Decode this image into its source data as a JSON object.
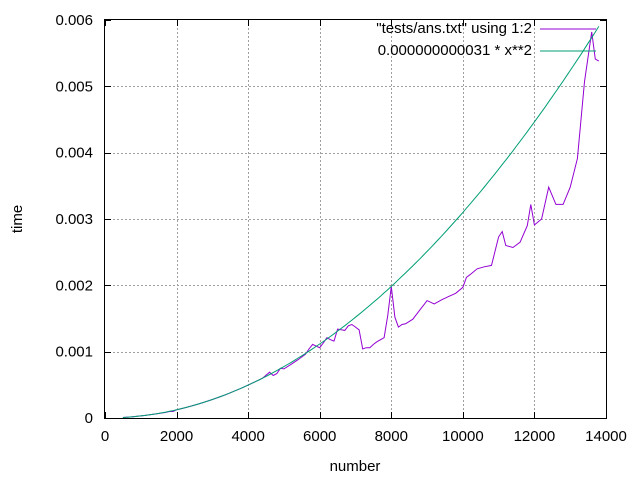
{
  "chart_data": {
    "type": "line",
    "title": "",
    "xlabel": "number",
    "ylabel": "time",
    "xlim": [
      0,
      14000
    ],
    "ylim": [
      0,
      0.006
    ],
    "x_ticks": [
      0,
      2000,
      4000,
      6000,
      8000,
      10000,
      12000,
      14000
    ],
    "x_tick_labels": [
      "0",
      "2000",
      "4000",
      "6000",
      "8000",
      "10000",
      "12000",
      "14000"
    ],
    "y_ticks": [
      0,
      0.001,
      0.002,
      0.003,
      0.004,
      0.005,
      0.006
    ],
    "y_tick_labels": [
      "0",
      "0.001",
      "0.002",
      "0.003",
      "0.004",
      "0.005",
      "0.006"
    ],
    "grid": true,
    "legend_position": "top-right",
    "series": [
      {
        "name": "\"tests/ans.txt\" using 1:2",
        "color": "#9400d3",
        "x": [
          500,
          700,
          900,
          1100,
          1300,
          1500,
          1700,
          1800,
          1900,
          2000,
          2100,
          2200,
          2400,
          2600,
          2800,
          3000,
          3200,
          3400,
          3600,
          3800,
          4000,
          4200,
          4400,
          4600,
          4700,
          4800,
          4900,
          5000,
          5200,
          5400,
          5600,
          5700,
          5800,
          6000,
          6100,
          6200,
          6300,
          6400,
          6500,
          6600,
          6700,
          6800,
          6900,
          7000,
          7100,
          7200,
          7300,
          7400,
          7500,
          7600,
          7800,
          7900,
          8000,
          8100,
          8200,
          8300,
          8400,
          8600,
          8800,
          9000,
          9200,
          9400,
          9600,
          9800,
          10000,
          10100,
          10200,
          10400,
          10600,
          10800,
          11000,
          11100,
          11200,
          11400,
          11600,
          11800,
          11900,
          12000,
          12200,
          12400,
          12600,
          12800,
          13000,
          13200,
          13400,
          13600,
          13700,
          13800
        ],
        "y": [
          7.8e-06,
          1.52e-05,
          2.51e-05,
          3.75e-05,
          5.24e-05,
          6.8e-05,
          8.5e-05,
          9.86e-05,
          9.8e-05,
          0.000124,
          0.000135,
          0.00015,
          0.000179,
          0.00021,
          0.000243,
          0.000279,
          0.000317,
          0.000358,
          0.000402,
          0.000448,
          0.000496,
          0.000547,
          0.0006,
          0.00069,
          0.00064,
          0.00067,
          0.00075,
          0.00074,
          0.00081,
          0.00088,
          0.00096,
          0.00104,
          0.00111,
          0.00106,
          0.00113,
          0.00121,
          0.00118,
          0.00116,
          0.00134,
          0.00133,
          0.00132,
          0.00139,
          0.00141,
          0.00137,
          0.00133,
          0.00104,
          0.00106,
          0.00106,
          0.00111,
          0.00115,
          0.00121,
          0.00154,
          0.00198,
          0.00152,
          0.00137,
          0.00141,
          0.00142,
          0.00149,
          0.00163,
          0.00177,
          0.00172,
          0.00178,
          0.00183,
          0.00188,
          0.00197,
          0.00212,
          0.00216,
          0.00225,
          0.00228,
          0.0023,
          0.00273,
          0.00281,
          0.0026,
          0.00257,
          0.00265,
          0.0029,
          0.00322,
          0.00291,
          0.003,
          0.00348,
          0.00322,
          0.00322,
          0.00348,
          0.00391,
          0.00507,
          0.00582,
          0.00541,
          0.00538
        ]
      },
      {
        "name": "0.000000000031 * x**2",
        "color": "#009e73",
        "function": "0.000000000031 * x**2",
        "coefficient": 3.1e-11,
        "x_range": [
          500,
          13800
        ]
      }
    ]
  }
}
